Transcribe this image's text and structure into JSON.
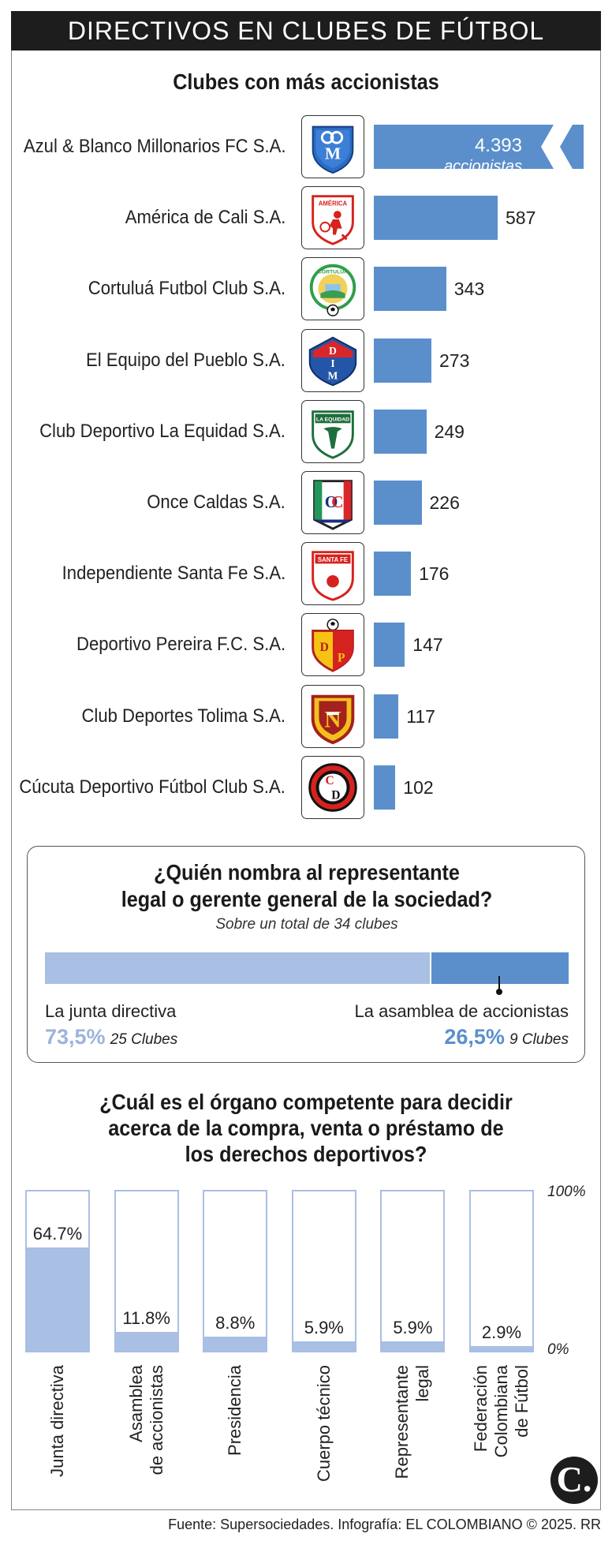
{
  "header": {
    "title": "DIRECTIVOS EN CLUBES DE FÚTBOL"
  },
  "section1": {
    "title": "Clubes con más accionistas"
  },
  "chart_data": [
    {
      "type": "bar",
      "orientation": "horizontal",
      "title": "Clubes con más accionistas",
      "categories": [
        "Azul & Blanco Millonarios FC S.A.",
        "América de Cali S.A.",
        "Cortuluá Futbol Club S.A.",
        "El Equipo del Pueblo S.A.",
        "Club Deportivo La Equidad S.A.",
        "Once Caldas S.A.",
        "Independiente Santa Fe S.A.",
        "Deportivo Pereira F.C. S.A.",
        "Club Deportes Tolima S.A.",
        "Cúcuta Deportivo Fútbol Club S.A."
      ],
      "values": [
        4393,
        587,
        343,
        273,
        249,
        226,
        176,
        147,
        117,
        102
      ],
      "value_labels": [
        "4.393",
        "587",
        "343",
        "273",
        "249",
        "226",
        "176",
        "147",
        "117",
        "102"
      ],
      "top_unit": "accionistas",
      "axis_break_on_first_bar": true,
      "scale_max": 800,
      "color": "#5b8fcb"
    },
    {
      "type": "bar",
      "orientation": "stacked-horizontal",
      "title": "¿Quién nombra al representante legal o gerente general de la sociedad?",
      "subtitle": "Sobre un total de 34 clubes",
      "series": [
        {
          "name": "La junta directiva",
          "value": 73.5,
          "label": "73,5%",
          "clubs": "25 Clubes",
          "color": "#a9bfe3"
        },
        {
          "name": "La asamblea de accionistas",
          "value": 26.5,
          "label": "26,5%",
          "clubs": "9 Clubes",
          "color": "#5b8fcb"
        }
      ]
    },
    {
      "type": "bar",
      "orientation": "vertical",
      "title": "¿Cuál es el órgano competente para decidir acerca de la compra, venta o préstamo de los derechos deportivos?",
      "categories": [
        [
          "Junta directiva"
        ],
        [
          "Asamblea",
          "de accionistas"
        ],
        [
          "Presidencia"
        ],
        [
          "Cuerpo técnico"
        ],
        [
          "Representante",
          "legal"
        ],
        [
          "Federación",
          "Colombiana",
          "de Fútbol"
        ]
      ],
      "values": [
        64.7,
        11.8,
        8.8,
        5.9,
        5.9,
        2.9
      ],
      "value_labels": [
        "64.7%",
        "11.8%",
        "8.8%",
        "5.9%",
        "5.9%",
        "2.9%"
      ],
      "ylim": [
        0,
        100
      ],
      "y_tick_labels": [
        "100%",
        "0%"
      ],
      "color": "#a9bfe3"
    }
  ],
  "section2": {
    "title_line1": "¿Quién nombra al representante",
    "title_line2": "legal o gerente general de la sociedad?",
    "subtitle": "Sobre un total de 34 clubes"
  },
  "section3": {
    "title_line1": "¿Cuál es el órgano competente para decidir",
    "title_line2": "acerca de la compra, venta o préstamo de",
    "title_line3": "los derechos deportivos?"
  },
  "footer": {
    "source": "Fuente: Supersociedades. Infografía: EL COLOMBIANO © 2025. RR",
    "brand": "C."
  },
  "logos": {
    "america_text": "AMÉRICA",
    "cortulua_text": "CORTULUA",
    "equidad_text": "LA EQUIDAD",
    "santafe_text": "SANTA FE"
  }
}
